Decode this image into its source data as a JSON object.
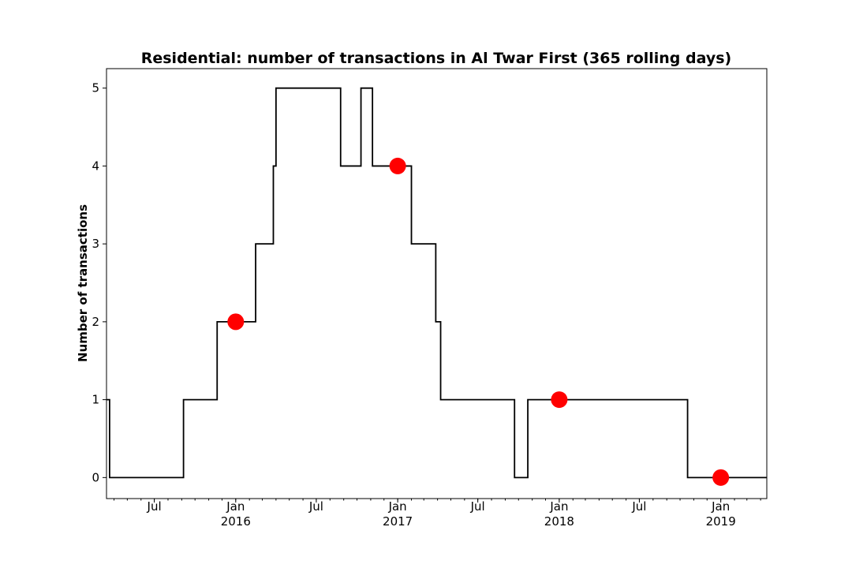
{
  "chart_data": {
    "type": "line",
    "title": "Residential: number of transactions in Al Twar First (365 rolling days)",
    "xlabel": "",
    "ylabel": "Number of transactions",
    "xlim": [
      "2015-03-15",
      "2019-04-15"
    ],
    "ylim": [
      -0.27,
      5.25
    ],
    "y_ticks": [
      0,
      1,
      2,
      3,
      4,
      5
    ],
    "x_ticks": [
      {
        "date": "2015-07-01",
        "label": "Jul",
        "year": ""
      },
      {
        "date": "2016-01-01",
        "label": "Jan",
        "year": "2016"
      },
      {
        "date": "2016-07-01",
        "label": "Jul",
        "year": ""
      },
      {
        "date": "2017-01-01",
        "label": "Jan",
        "year": "2017"
      },
      {
        "date": "2017-07-01",
        "label": "Jul",
        "year": ""
      },
      {
        "date": "2018-01-01",
        "label": "Jan",
        "year": "2018"
      },
      {
        "date": "2018-07-01",
        "label": "Jul",
        "year": ""
      },
      {
        "date": "2019-01-01",
        "label": "Jan",
        "year": "2019"
      }
    ],
    "grid": false,
    "series": [
      {
        "line_style": "step",
        "color": "#000000",
        "points": [
          {
            "x": "2015-03-15",
            "y": 1
          },
          {
            "x": "2015-03-22",
            "y": 0
          },
          {
            "x": "2015-09-05",
            "y": 1
          },
          {
            "x": "2015-11-20",
            "y": 2
          },
          {
            "x": "2016-02-15",
            "y": 3
          },
          {
            "x": "2016-03-26",
            "y": 4
          },
          {
            "x": "2016-04-01",
            "y": 5
          },
          {
            "x": "2016-08-25",
            "y": 4
          },
          {
            "x": "2016-10-10",
            "y": 5
          },
          {
            "x": "2016-11-05",
            "y": 4
          },
          {
            "x": "2017-02-01",
            "y": 3
          },
          {
            "x": "2017-03-28",
            "y": 2
          },
          {
            "x": "2017-04-08",
            "y": 1
          },
          {
            "x": "2017-09-22",
            "y": 0
          },
          {
            "x": "2017-10-22",
            "y": 1
          },
          {
            "x": "2018-10-18",
            "y": 0
          },
          {
            "x": "2019-04-15",
            "y": 0
          }
        ]
      },
      {
        "line_style": "markers",
        "color": "#ff0000",
        "points": [
          {
            "x": "2016-01-01",
            "y": 2
          },
          {
            "x": "2017-01-01",
            "y": 4
          },
          {
            "x": "2018-01-01",
            "y": 1
          },
          {
            "x": "2019-01-01",
            "y": 0
          }
        ]
      }
    ]
  }
}
